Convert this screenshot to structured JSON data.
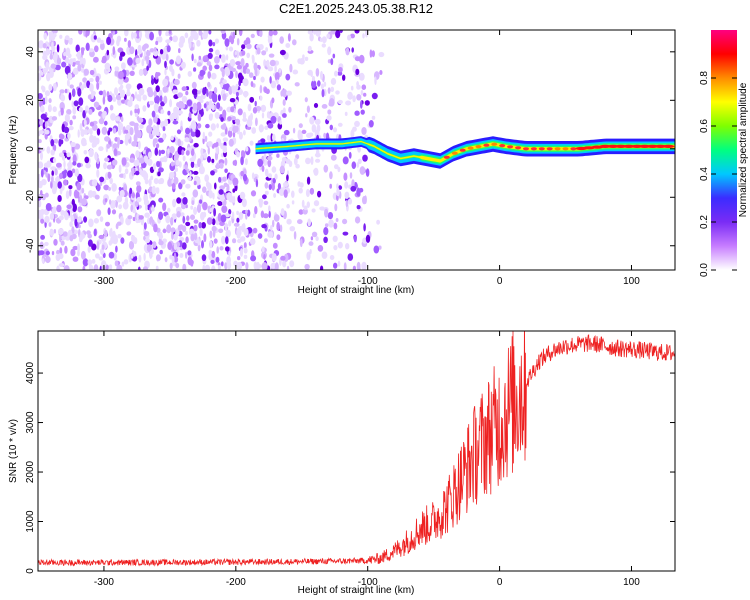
{
  "title": "C2E1.2025.243.05.38.R12",
  "colorbar": {
    "label": "Normalized spectral amplitude",
    "ticks": [
      "0.0",
      "0.2",
      "0.4",
      "0.6",
      "0.8"
    ],
    "tick_values": [
      0.0,
      0.2,
      0.4,
      0.6,
      0.8
    ],
    "colors": [
      "#ffffff",
      "#c77dff",
      "#7a2cf5",
      "#3b2cff",
      "#00c8ff",
      "#00ff80",
      "#7fff00",
      "#ffff00",
      "#ff8c00",
      "#ff0000",
      "#ff0080"
    ]
  },
  "chart_data": [
    {
      "type": "heatmap",
      "xlabel": "Height of straight line (km)",
      "ylabel": "Frequency (Hz)",
      "xlim": [
        -350,
        133
      ],
      "ylim": [
        -50,
        49
      ],
      "xticks": [
        -300,
        -200,
        -100,
        0,
        100
      ],
      "yticks": [
        -40,
        -20,
        0,
        20,
        40
      ],
      "xtick_labels": [
        "-300",
        "-200",
        "-100",
        "0",
        "100"
      ],
      "ytick_labels": [
        "-40",
        "-20",
        "0",
        "20",
        "40"
      ],
      "noise_region": {
        "x_range": [
          -350,
          -100
        ],
        "freq_range": [
          -50,
          49
        ]
      },
      "ridge": {
        "x": [
          -185,
          -160,
          -140,
          -120,
          -105,
          -95,
          -85,
          -75,
          -65,
          -55,
          -45,
          -35,
          -25,
          -15,
          -5,
          5,
          20,
          40,
          60,
          80,
          100,
          120,
          133
        ],
        "freq": [
          0,
          1,
          2,
          2,
          3,
          1,
          -2,
          -4,
          -3,
          -4,
          -5,
          -2,
          0,
          1,
          2,
          1,
          0,
          0,
          0,
          1,
          1,
          1,
          1
        ]
      }
    },
    {
      "type": "line",
      "xlabel": "Height of straight line (km)",
      "ylabel": "SNR (10 * v/v)",
      "xlim": [
        -350,
        133
      ],
      "ylim": [
        0,
        4850
      ],
      "xticks": [
        -300,
        -200,
        -100,
        0,
        100
      ],
      "yticks": [
        0,
        1000,
        2000,
        3000,
        4000
      ],
      "xtick_labels": [
        "-300",
        "-200",
        "-100",
        "0",
        "100"
      ],
      "ytick_labels": [
        "0",
        "1000",
        "2000",
        "3000",
        "4000"
      ],
      "series": [
        {
          "color": "#ee2222",
          "x": [
            -350,
            -300,
            -250,
            -200,
            -150,
            -120,
            -100,
            -90,
            -80,
            -70,
            -60,
            -50,
            -40,
            -30,
            -20,
            -10,
            0,
            10,
            20,
            30,
            40,
            50,
            60,
            70,
            80,
            90,
            100,
            110,
            120,
            133
          ],
          "values": [
            170,
            170,
            175,
            180,
            190,
            200,
            210,
            260,
            400,
            600,
            850,
            1000,
            1300,
            1800,
            2300,
            2700,
            3000,
            3400,
            3800,
            4250,
            4450,
            4550,
            4580,
            4600,
            4550,
            4500,
            4480,
            4450,
            4420,
            4400
          ]
        }
      ]
    }
  ]
}
